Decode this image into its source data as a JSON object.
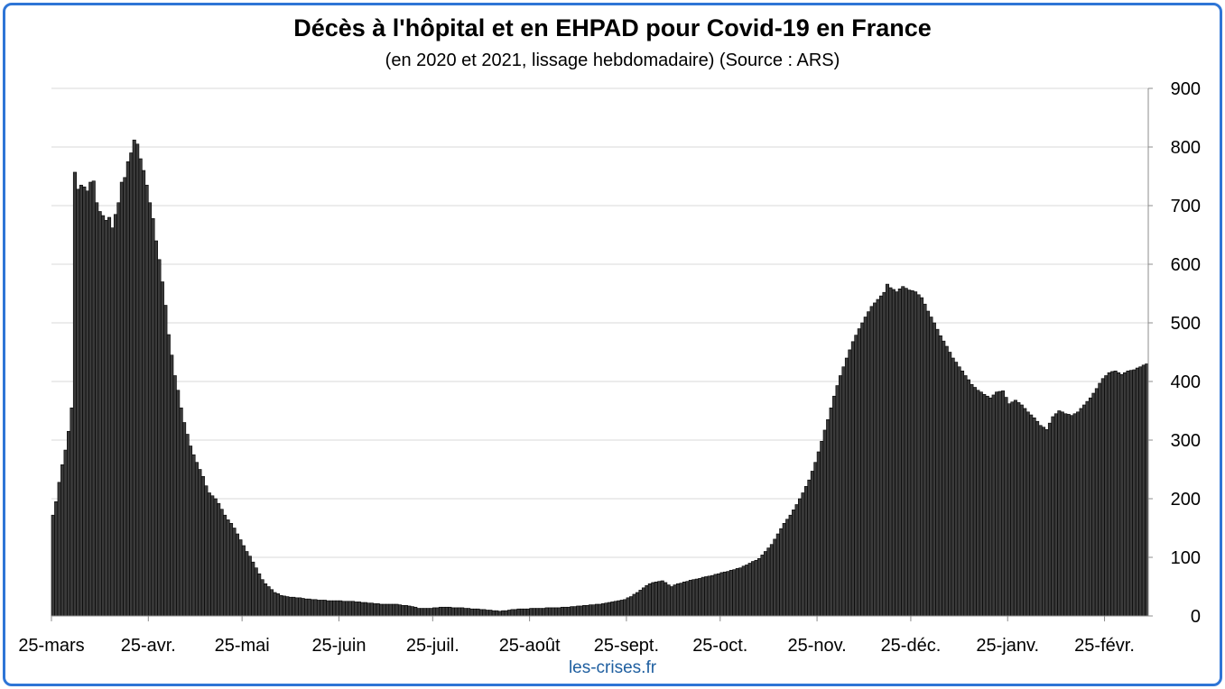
{
  "chart_data": {
    "type": "bar",
    "title": "Décès à l'hôpital et en EHPAD pour Covid-19 en France",
    "subtitle": "(en 2020 et 2021, lissage hebdomadaire) (Source : ARS)",
    "ylim": [
      0,
      900
    ],
    "yticks": [
      "0",
      "100",
      "200",
      "300",
      "400",
      "500",
      "600",
      "700",
      "800",
      "900"
    ],
    "y_axis_side": "right",
    "grid": true,
    "legend": "none",
    "bar_color": "#3a3a3a",
    "bar_edge_color": "#000000",
    "xticks": [
      "25-mars",
      "25-avr.",
      "25-mai",
      "25-juin",
      "25-juil.",
      "25-août",
      "25-sept.",
      "25-oct.",
      "25-nov.",
      "25-déc.",
      "25-janv.",
      "25-févr."
    ],
    "xtick_day_index": [
      0,
      31,
      61,
      92,
      122,
      153,
      184,
      214,
      245,
      275,
      306,
      337
    ],
    "day_count": 351,
    "anchors": [
      [
        0,
        172
      ],
      [
        1,
        195
      ],
      [
        2,
        228
      ],
      [
        3,
        258
      ],
      [
        4,
        283
      ],
      [
        5,
        315
      ],
      [
        6,
        355
      ],
      [
        7,
        757
      ],
      [
        8,
        728
      ],
      [
        9,
        735
      ],
      [
        10,
        732
      ],
      [
        11,
        725
      ],
      [
        12,
        740
      ],
      [
        13,
        742
      ],
      [
        14,
        705
      ],
      [
        15,
        690
      ],
      [
        16,
        683
      ],
      [
        17,
        675
      ],
      [
        18,
        680
      ],
      [
        19,
        662
      ],
      [
        20,
        685
      ],
      [
        21,
        705
      ],
      [
        22,
        740
      ],
      [
        23,
        748
      ],
      [
        24,
        775
      ],
      [
        25,
        790
      ],
      [
        26,
        812
      ],
      [
        27,
        805
      ],
      [
        28,
        780
      ],
      [
        29,
        760
      ],
      [
        30,
        735
      ],
      [
        31,
        705
      ],
      [
        32,
        678
      ],
      [
        33,
        640
      ],
      [
        34,
        608
      ],
      [
        35,
        570
      ],
      [
        36,
        530
      ],
      [
        37,
        480
      ],
      [
        38,
        445
      ],
      [
        39,
        410
      ],
      [
        40,
        385
      ],
      [
        41,
        355
      ],
      [
        42,
        330
      ],
      [
        43,
        310
      ],
      [
        44,
        290
      ],
      [
        45,
        275
      ],
      [
        46,
        262
      ],
      [
        47,
        250
      ],
      [
        48,
        238
      ],
      [
        49,
        222
      ],
      [
        50,
        210
      ],
      [
        51,
        205
      ],
      [
        52,
        200
      ],
      [
        53,
        192
      ],
      [
        54,
        182
      ],
      [
        55,
        172
      ],
      [
        56,
        164
      ],
      [
        57,
        158
      ],
      [
        58,
        150
      ],
      [
        59,
        140
      ],
      [
        60,
        130
      ],
      [
        61,
        120
      ],
      [
        62,
        110
      ],
      [
        63,
        102
      ],
      [
        64,
        92
      ],
      [
        65,
        82
      ],
      [
        66,
        72
      ],
      [
        67,
        62
      ],
      [
        68,
        55
      ],
      [
        69,
        50
      ],
      [
        70,
        45
      ],
      [
        71,
        40
      ],
      [
        73,
        35
      ],
      [
        76,
        32
      ],
      [
        80,
        30
      ],
      [
        85,
        27
      ],
      [
        90,
        26
      ],
      [
        95,
        25
      ],
      [
        100,
        23
      ],
      [
        105,
        20
      ],
      [
        110,
        20
      ],
      [
        115,
        16
      ],
      [
        117,
        13
      ],
      [
        120,
        13
      ],
      [
        125,
        15
      ],
      [
        130,
        14
      ],
      [
        135,
        12
      ],
      [
        140,
        10
      ],
      [
        143,
        8
      ],
      [
        146,
        10
      ],
      [
        150,
        12
      ],
      [
        155,
        13
      ],
      [
        160,
        14
      ],
      [
        165,
        15
      ],
      [
        170,
        18
      ],
      [
        175,
        20
      ],
      [
        180,
        25
      ],
      [
        183,
        28
      ],
      [
        185,
        33
      ],
      [
        187,
        40
      ],
      [
        189,
        48
      ],
      [
        191,
        55
      ],
      [
        193,
        58
      ],
      [
        195,
        60
      ],
      [
        198,
        50
      ],
      [
        200,
        55
      ],
      [
        205,
        62
      ],
      [
        210,
        68
      ],
      [
        215,
        75
      ],
      [
        220,
        82
      ],
      [
        223,
        90
      ],
      [
        226,
        98
      ],
      [
        228,
        110
      ],
      [
        230,
        122
      ],
      [
        232,
        140
      ],
      [
        234,
        158
      ],
      [
        236,
        172
      ],
      [
        238,
        190
      ],
      [
        240,
        210
      ],
      [
        242,
        232
      ],
      [
        244,
        262
      ],
      [
        246,
        298
      ],
      [
        248,
        335
      ],
      [
        250,
        375
      ],
      [
        252,
        410
      ],
      [
        254,
        440
      ],
      [
        256,
        468
      ],
      [
        258,
        490
      ],
      [
        260,
        510
      ],
      [
        262,
        528
      ],
      [
        264,
        540
      ],
      [
        266,
        552
      ],
      [
        267,
        566
      ],
      [
        268,
        560
      ],
      [
        270,
        553
      ],
      [
        272,
        562
      ],
      [
        274,
        556
      ],
      [
        276,
        553
      ],
      [
        278,
        543
      ],
      [
        280,
        520
      ],
      [
        282,
        500
      ],
      [
        284,
        478
      ],
      [
        286,
        460
      ],
      [
        288,
        440
      ],
      [
        290,
        425
      ],
      [
        292,
        410
      ],
      [
        294,
        395
      ],
      [
        296,
        385
      ],
      [
        298,
        378
      ],
      [
        300,
        372
      ],
      [
        302,
        382
      ],
      [
        304,
        384
      ],
      [
        306,
        362
      ],
      [
        308,
        368
      ],
      [
        310,
        360
      ],
      [
        312,
        348
      ],
      [
        314,
        338
      ],
      [
        316,
        325
      ],
      [
        318,
        318
      ],
      [
        320,
        340
      ],
      [
        322,
        350
      ],
      [
        324,
        345
      ],
      [
        326,
        342
      ],
      [
        328,
        348
      ],
      [
        330,
        360
      ],
      [
        332,
        372
      ],
      [
        334,
        388
      ],
      [
        336,
        405
      ],
      [
        338,
        415
      ],
      [
        340,
        418
      ],
      [
        342,
        412
      ],
      [
        344,
        418
      ],
      [
        346,
        420
      ],
      [
        348,
        425
      ],
      [
        350,
        430
      ]
    ]
  },
  "watermark": "les-crises.fr"
}
